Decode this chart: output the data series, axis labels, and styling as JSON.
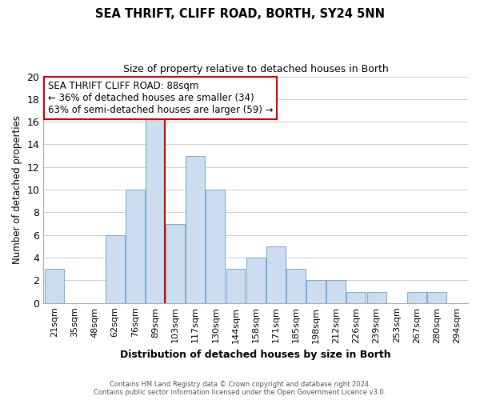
{
  "title_line1": "SEA THRIFT, CLIFF ROAD, BORTH, SY24 5NN",
  "title_line2": "Size of property relative to detached houses in Borth",
  "xlabel": "Distribution of detached houses by size in Borth",
  "ylabel": "Number of detached properties",
  "bar_labels": [
    "21sqm",
    "35sqm",
    "48sqm",
    "62sqm",
    "76sqm",
    "89sqm",
    "103sqm",
    "117sqm",
    "130sqm",
    "144sqm",
    "158sqm",
    "171sqm",
    "185sqm",
    "198sqm",
    "212sqm",
    "226sqm",
    "239sqm",
    "253sqm",
    "267sqm",
    "280sqm",
    "294sqm"
  ],
  "bar_values": [
    3,
    0,
    0,
    6,
    10,
    17,
    7,
    13,
    10,
    3,
    4,
    5,
    3,
    2,
    2,
    1,
    1,
    0,
    1,
    1,
    0
  ],
  "bar_color": "#ccddf0",
  "bar_edge_color": "#7bafd4",
  "grid_color": "#cccccc",
  "vline_x_index": 5,
  "vline_color": "#cc0000",
  "annotation_title": "SEA THRIFT CLIFF ROAD: 88sqm",
  "annotation_line1": "← 36% of detached houses are smaller (34)",
  "annotation_line2": "63% of semi-detached houses are larger (59) →",
  "annotation_box_color": "#ffffff",
  "annotation_box_edge": "#cc0000",
  "ylim": [
    0,
    20
  ],
  "yticks": [
    0,
    2,
    4,
    6,
    8,
    10,
    12,
    14,
    16,
    18,
    20
  ],
  "footer_line1": "Contains HM Land Registry data © Crown copyright and database right 2024.",
  "footer_line2": "Contains public sector information licensed under the Open Government Licence v3.0."
}
